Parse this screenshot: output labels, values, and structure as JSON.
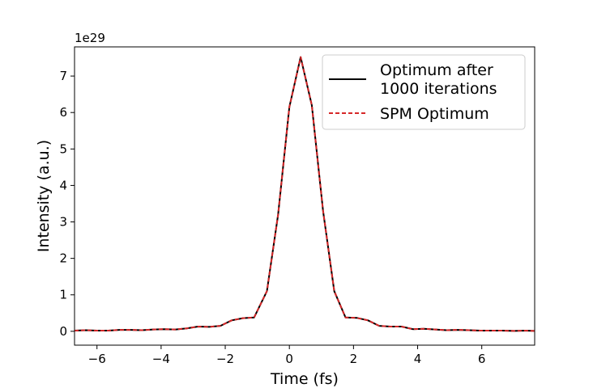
{
  "chart_data": {
    "type": "line",
    "title": "",
    "xlabel": "Time (fs)",
    "ylabel": "Intensity (a.u.)",
    "y_offset_label": "1e29",
    "xlim": [
      -6.7,
      7.65
    ],
    "ylim": [
      -0.38,
      7.8
    ],
    "x_ticks": [
      -6,
      -4,
      -2,
      0,
      2,
      4,
      6
    ],
    "x_tick_labels": [
      "−6",
      "−4",
      "−2",
      "0",
      "2",
      "4",
      "6"
    ],
    "y_ticks": [
      0,
      1,
      2,
      3,
      4,
      5,
      6,
      7
    ],
    "y_tick_labels": [
      "0",
      "1",
      "2",
      "3",
      "4",
      "5",
      "6",
      "7"
    ],
    "grid": false,
    "legend_position": "top-right",
    "x": [
      -6.7,
      -6.35,
      -6.0,
      -5.65,
      -5.3,
      -4.95,
      -4.6,
      -4.25,
      -3.9,
      -3.55,
      -3.2,
      -2.85,
      -2.5,
      -2.15,
      -1.8,
      -1.45,
      -1.1,
      -0.7,
      -0.35,
      0.0,
      0.35,
      0.7,
      1.05,
      1.4,
      1.75,
      2.1,
      2.45,
      2.8,
      3.15,
      3.5,
      3.85,
      4.2,
      4.55,
      4.9,
      5.25,
      5.6,
      5.95,
      6.3,
      6.65,
      7.0,
      7.35,
      7.65
    ],
    "series": [
      {
        "name": "Optimum after\n1000 iterations",
        "color": "#000000",
        "style": "solid",
        "values": [
          0.02,
          0.03,
          0.02,
          0.02,
          0.04,
          0.04,
          0.03,
          0.05,
          0.06,
          0.05,
          0.08,
          0.13,
          0.12,
          0.15,
          0.3,
          0.36,
          0.38,
          1.1,
          3.2,
          6.15,
          7.52,
          6.2,
          3.3,
          1.1,
          0.38,
          0.37,
          0.3,
          0.15,
          0.13,
          0.13,
          0.06,
          0.07,
          0.05,
          0.03,
          0.04,
          0.03,
          0.02,
          0.02,
          0.02,
          0.01,
          0.02,
          0.01
        ]
      },
      {
        "name": "SPM Optimum",
        "color": "#d62728",
        "style": "dashed",
        "values": [
          0.02,
          0.03,
          0.02,
          0.02,
          0.04,
          0.04,
          0.03,
          0.05,
          0.06,
          0.05,
          0.08,
          0.13,
          0.12,
          0.15,
          0.3,
          0.36,
          0.38,
          1.1,
          3.2,
          6.15,
          7.52,
          6.2,
          3.3,
          1.1,
          0.38,
          0.37,
          0.3,
          0.15,
          0.13,
          0.13,
          0.06,
          0.07,
          0.05,
          0.03,
          0.04,
          0.03,
          0.02,
          0.02,
          0.02,
          0.01,
          0.02,
          0.01
        ]
      }
    ]
  }
}
